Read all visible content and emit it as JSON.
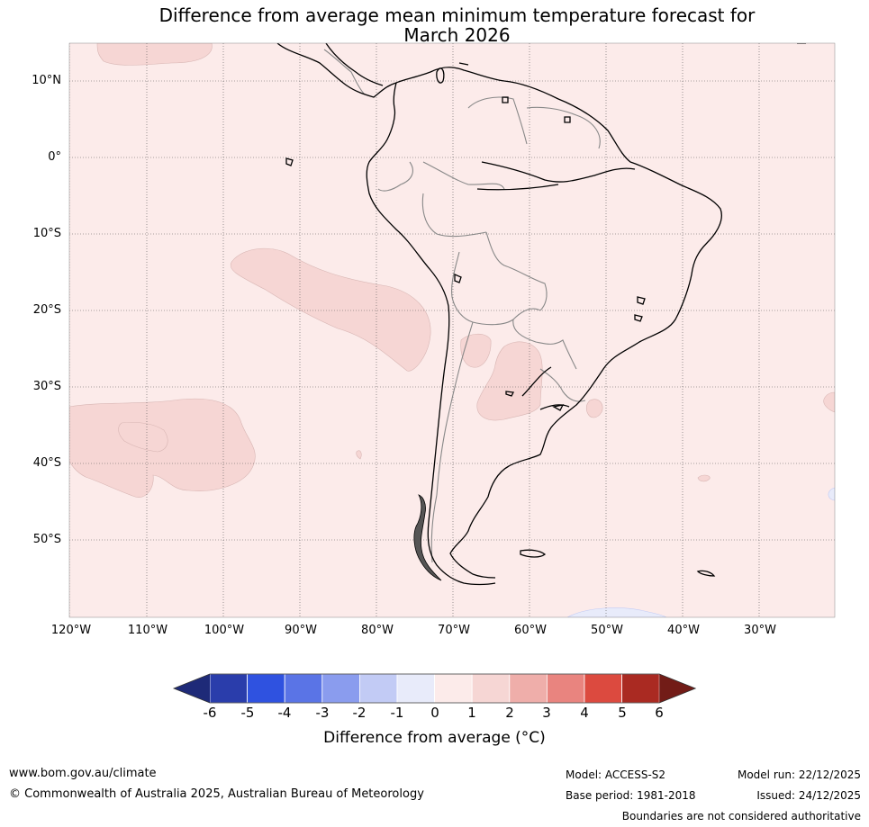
{
  "title": {
    "line1": "Difference from average mean minimum temperature forecast for",
    "line2": "March 2026"
  },
  "latitude_labels": [
    "10°N",
    "0°",
    "10°S",
    "20°S",
    "30°S",
    "40°S",
    "50°S"
  ],
  "longitude_labels": [
    "120°W",
    "110°W",
    "100°W",
    "90°W",
    "80°W",
    "70°W",
    "60°W",
    "50°W",
    "40°W",
    "30°W"
  ],
  "colorbar": {
    "ticks": [
      "-6",
      "-5",
      "-4",
      "-3",
      "-2",
      "-1",
      "0",
      "1",
      "2",
      "3",
      "4",
      "5",
      "6"
    ],
    "colors": [
      "#2a3dab",
      "#2f52e0",
      "#5a74e6",
      "#8a9cee",
      "#c2cbf5",
      "#e8ebfa",
      "#fcebea",
      "#f6d6d4",
      "#efaeaa",
      "#e9847f",
      "#dc4a3f",
      "#aa2a22"
    ],
    "under_color": "#1e2a78",
    "over_color": "#721c17",
    "label": "Difference from average (°C)"
  },
  "colors": {
    "background_anomaly": "#fcebea",
    "light_warm_patch": "#f6d6d4",
    "light_cool_patch": "#e8ebfa"
  },
  "footer": {
    "website": "www.bom.gov.au/climate",
    "copyright": "© Commonwealth of Australia 2025, Australian Bureau of Meteorology",
    "model": "Model: ACCESS-S2",
    "base_period": "Base period: 1981-2018",
    "model_run": "Model run: 22/12/2025",
    "issued": "Issued: 24/12/2025",
    "disclaimer": "Boundaries are not considered authoritative"
  }
}
